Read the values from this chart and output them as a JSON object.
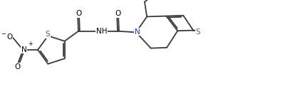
{
  "bg_color": "#ffffff",
  "bond_color": "#3a3a3a",
  "s_color": "#3a7a3a",
  "n_color": "#2040b0",
  "lw": 1.3,
  "fs": 7.5,
  "fig_width": 4.07,
  "fig_height": 1.32,
  "dpi": 100,
  "xlim": [
    0,
    10.2
  ],
  "ylim": [
    0,
    3.3
  ]
}
